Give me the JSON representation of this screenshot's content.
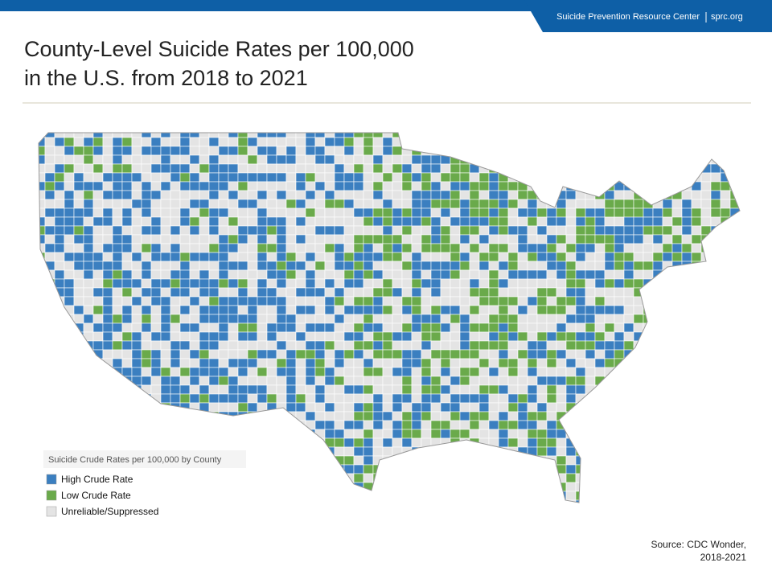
{
  "header": {
    "org": "Suicide Prevention Resource Center",
    "site": "sprc.org"
  },
  "title": [
    "County-Level Suicide Rates per 100,000",
    "in the U.S. from 2018 to 2021"
  ],
  "legend": {
    "title": "Suicide Crude Rates per 100,000 by County",
    "items": [
      {
        "label": "High Crude Rate",
        "color": "#3b7fc0"
      },
      {
        "label": "Low Crude Rate",
        "color": "#6aaa4b"
      },
      {
        "label": "Unreliable/Suppressed",
        "color": "#e4e4e4"
      }
    ]
  },
  "source": [
    "Source: CDC Wonder,",
    "2018-2021"
  ]
}
